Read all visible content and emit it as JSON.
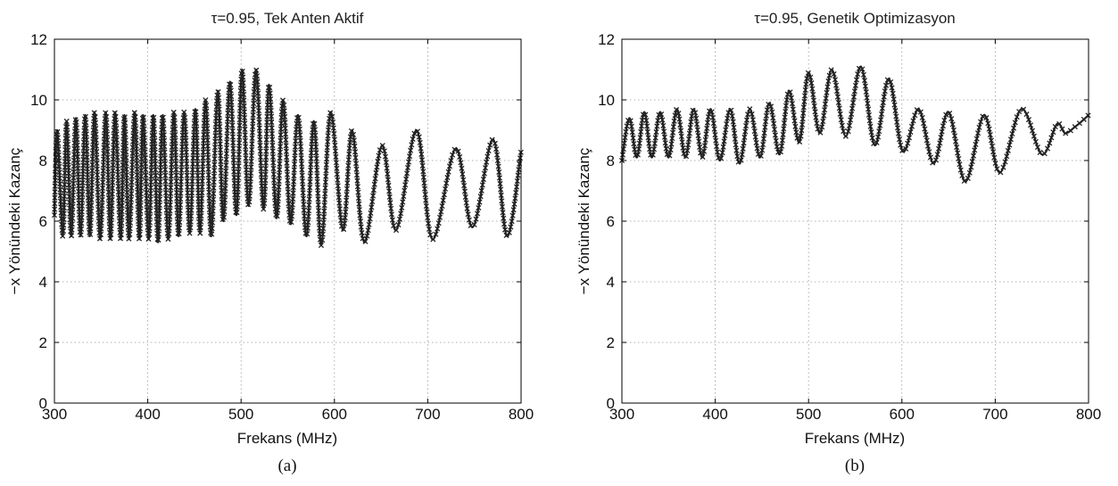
{
  "charts": [
    {
      "title": "τ=0.95, Tek Anten Aktif",
      "caption": "(a)",
      "xlabel": "Frekans (MHz)",
      "ylabel": "−x Yönündeki Kazanç",
      "line_color": "#222222"
    },
    {
      "title": "τ=0.95, Genetik Optimizasyon",
      "caption": "(b)",
      "xlabel": "Frekans (MHz)",
      "ylabel": "−x Yönündeki Kazanç",
      "line_color": "#222222"
    }
  ],
  "chart_data": [
    {
      "type": "line",
      "title": "τ=0.95, Tek Anten Aktif",
      "xlabel": "Frekans (MHz)",
      "ylabel": "−x Yönündeki Kazanç",
      "xlim": [
        300,
        800
      ],
      "ylim": [
        0,
        12
      ],
      "xticks": [
        300,
        400,
        500,
        600,
        700,
        800
      ],
      "yticks": [
        0,
        2,
        4,
        6,
        8,
        10,
        12
      ],
      "grid": true,
      "markers": "x",
      "series": [
        {
          "x": [
            300,
            303,
            309,
            313,
            318,
            323,
            328,
            333,
            338,
            343,
            349,
            355,
            360,
            365,
            371,
            375,
            380,
            386,
            391,
            395,
            401,
            406,
            411,
            416,
            422,
            428,
            433,
            439,
            445,
            451,
            456,
            462,
            468,
            475,
            481,
            488,
            495,
            501,
            508,
            516,
            524,
            530,
            538,
            545,
            553,
            561,
            570,
            578,
            586,
            596,
            609,
            619,
            632,
            651,
            666,
            688,
            705,
            730,
            748,
            770,
            785,
            800
          ],
          "y": [
            6.2,
            9.0,
            5.5,
            9.3,
            5.5,
            9.4,
            5.5,
            9.5,
            5.5,
            9.6,
            5.4,
            9.6,
            5.4,
            9.6,
            5.4,
            9.5,
            5.4,
            9.6,
            5.4,
            9.5,
            5.4,
            9.5,
            5.3,
            9.5,
            5.4,
            9.6,
            5.5,
            9.6,
            5.6,
            9.7,
            5.6,
            10.0,
            5.5,
            10.3,
            6.0,
            10.6,
            6.2,
            11.0,
            6.5,
            11.0,
            6.4,
            10.5,
            6.1,
            10.0,
            5.9,
            9.5,
            5.5,
            9.3,
            5.2,
            9.6,
            5.7,
            9.0,
            5.3,
            8.5,
            5.7,
            9.0,
            5.4,
            8.4,
            5.8,
            8.7,
            5.5,
            8.3
          ]
        }
      ]
    },
    {
      "type": "line",
      "title": "τ=0.95, Genetik Optimizasyon",
      "xlabel": "Frekans (MHz)",
      "ylabel": "−x Yönündeki Kazanç",
      "xlim": [
        300,
        800
      ],
      "ylim": [
        0,
        12
      ],
      "xticks": [
        300,
        400,
        500,
        600,
        700,
        800
      ],
      "yticks": [
        0,
        2,
        4,
        6,
        8,
        10,
        12
      ],
      "grid": true,
      "markers": "x",
      "series": [
        {
          "x": [
            300,
            308,
            316,
            324,
            332,
            341,
            350,
            359,
            368,
            377,
            386,
            395,
            405,
            416,
            426,
            437,
            448,
            458,
            469,
            479,
            490,
            500,
            512,
            525,
            540,
            556,
            571,
            586,
            601,
            618,
            634,
            650,
            668,
            688,
            705,
            728,
            750,
            766,
            775,
            785,
            793,
            800
          ],
          "y": [
            8.0,
            9.4,
            8.1,
            9.6,
            8.1,
            9.6,
            8.1,
            9.7,
            8.1,
            9.7,
            8.1,
            9.7,
            8.0,
            9.7,
            7.9,
            9.7,
            8.1,
            9.9,
            8.2,
            10.3,
            8.6,
            10.9,
            8.9,
            11.0,
            8.8,
            11.1,
            8.5,
            10.7,
            8.3,
            9.7,
            7.9,
            9.6,
            7.3,
            9.5,
            7.6,
            9.7,
            8.2,
            9.2,
            8.9,
            9.1,
            9.3,
            9.5
          ]
        }
      ]
    }
  ]
}
